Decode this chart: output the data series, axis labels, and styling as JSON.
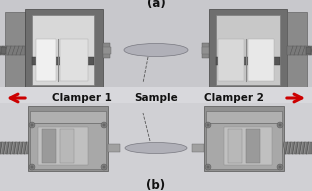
{
  "title_a": "(a)",
  "title_b": "(b)",
  "label_clamper1": "Clamper 1",
  "label_sample": "Sample",
  "label_clamper2": "Clamper 2",
  "bg_top": "#c8c8cc",
  "bg_bottom": "#d4d4d8",
  "gray_frame": "#6a6a6a",
  "gray_dark": "#555555",
  "gray_mid": "#888888",
  "gray_light": "#b0b0b0",
  "gray_lighter": "#c0c0c0",
  "gray_inner_bg": "#e8e8e8",
  "white_panel": "#f0f0f0",
  "gray_bar": "#aaaaaa",
  "gray_rod": "#909090",
  "sample_color": "#b8b8c0",
  "sample_edge": "#808088",
  "arrow_color": "#cc0000",
  "text_color": "#111111",
  "divider_color": "#999999",
  "border_color": "#444444"
}
